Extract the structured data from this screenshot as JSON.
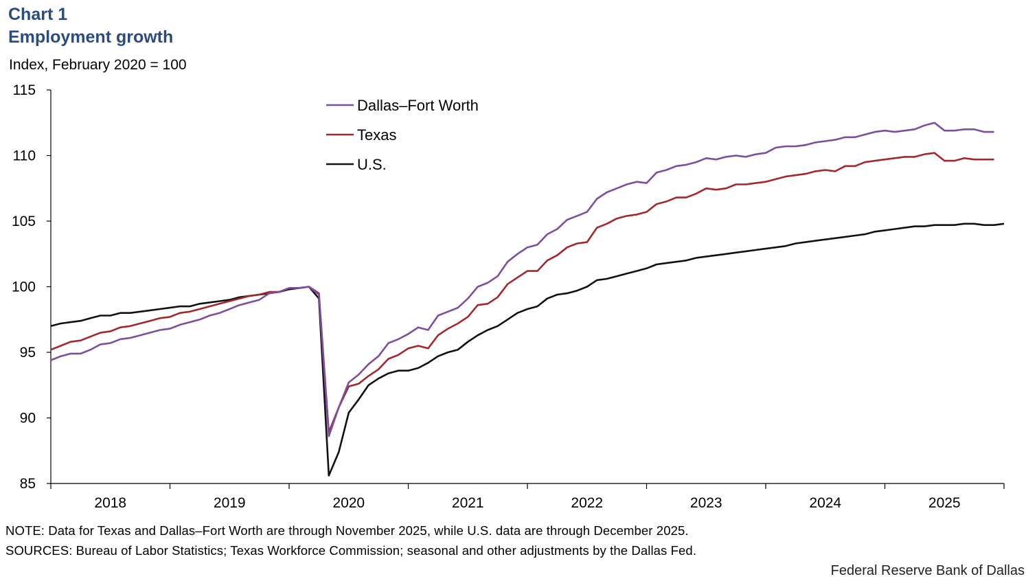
{
  "header": {
    "chart_number": "Chart 1",
    "title": "Employment growth",
    "subtitle": "Index, February 2020 = 100"
  },
  "footer": {
    "note": "NOTE: Data for Texas and Dallas–Fort Worth are through November 2025, while U.S. data are through December 2025.",
    "sources": "SOURCES: Bureau of Labor Statistics; Texas Workforce Commission; seasonal and other adjustments by the Dallas Fed.",
    "credit": "Federal Reserve Bank of Dallas"
  },
  "chart_data": {
    "type": "line",
    "title": "Employment growth",
    "ylabel": "Index, February 2020 = 100",
    "xlabel": "",
    "ylim": [
      85,
      115
    ],
    "yticks": [
      85,
      90,
      95,
      100,
      105,
      110,
      115
    ],
    "x_start": "2017-12",
    "x_tick_labels": [
      "2018",
      "2019",
      "2020",
      "2021",
      "2022",
      "2023",
      "2024",
      "2025"
    ],
    "grid": false,
    "legend": "top-center",
    "series": [
      {
        "name": "Dallas–Fort Worth",
        "color": "#7b4f9e",
        "values": [
          94.4,
          94.7,
          94.9,
          94.9,
          95.2,
          95.6,
          95.7,
          96.0,
          96.1,
          96.3,
          96.5,
          96.7,
          96.8,
          97.1,
          97.3,
          97.5,
          97.8,
          98.0,
          98.3,
          98.6,
          98.8,
          99.0,
          99.5,
          99.6,
          99.9,
          99.9,
          100.0,
          99.4,
          88.6,
          90.8,
          92.7,
          93.3,
          94.1,
          94.7,
          95.7,
          96.0,
          96.4,
          96.9,
          96.7,
          97.8,
          98.1,
          98.4,
          99.1,
          100.0,
          100.3,
          100.8,
          101.9,
          102.5,
          103.0,
          103.2,
          104.0,
          104.4,
          105.1,
          105.4,
          105.7,
          106.7,
          107.2,
          107.5,
          107.8,
          108.0,
          107.9,
          108.7,
          108.9,
          109.2,
          109.3,
          109.5,
          109.8,
          109.7,
          109.9,
          110.0,
          109.9,
          110.1,
          110.2,
          110.6,
          110.7,
          110.7,
          110.8,
          111.0,
          111.1,
          111.2,
          111.4,
          111.4,
          111.6,
          111.8,
          111.9,
          111.8,
          111.9,
          112.0,
          112.3,
          112.5,
          111.9,
          111.9,
          112.0,
          112.0,
          111.8,
          111.8
        ]
      },
      {
        "name": "Texas",
        "color": "#a3282e",
        "values": [
          95.2,
          95.5,
          95.8,
          95.9,
          96.2,
          96.5,
          96.6,
          96.9,
          97.0,
          97.2,
          97.4,
          97.6,
          97.7,
          98.0,
          98.1,
          98.3,
          98.5,
          98.7,
          98.9,
          99.1,
          99.3,
          99.4,
          99.6,
          99.6,
          99.9,
          99.9,
          100.0,
          99.5,
          88.9,
          90.8,
          92.4,
          92.6,
          93.2,
          93.7,
          94.5,
          94.8,
          95.3,
          95.5,
          95.3,
          96.3,
          96.8,
          97.2,
          97.7,
          98.6,
          98.7,
          99.2,
          100.2,
          100.7,
          101.2,
          101.2,
          102.0,
          102.4,
          103.0,
          103.3,
          103.4,
          104.5,
          104.8,
          105.2,
          105.4,
          105.5,
          105.7,
          106.3,
          106.5,
          106.8,
          106.8,
          107.1,
          107.5,
          107.4,
          107.5,
          107.8,
          107.8,
          107.9,
          108.0,
          108.2,
          108.4,
          108.5,
          108.6,
          108.8,
          108.9,
          108.8,
          109.2,
          109.2,
          109.5,
          109.6,
          109.7,
          109.8,
          109.9,
          109.9,
          110.1,
          110.2,
          109.6,
          109.6,
          109.8,
          109.7,
          109.7,
          109.7
        ]
      },
      {
        "name": "U.S.",
        "color": "#111111",
        "values": [
          97.0,
          97.2,
          97.3,
          97.4,
          97.6,
          97.8,
          97.8,
          98.0,
          98.0,
          98.1,
          98.2,
          98.3,
          98.4,
          98.5,
          98.5,
          98.7,
          98.8,
          98.9,
          99.0,
          99.2,
          99.3,
          99.4,
          99.5,
          99.6,
          99.8,
          99.9,
          100.0,
          99.1,
          85.6,
          87.4,
          90.4,
          91.4,
          92.5,
          93.0,
          93.4,
          93.6,
          93.6,
          93.8,
          94.2,
          94.7,
          95.0,
          95.2,
          95.8,
          96.3,
          96.7,
          97.0,
          97.5,
          98.0,
          98.3,
          98.5,
          99.1,
          99.4,
          99.5,
          99.7,
          100.0,
          100.5,
          100.6,
          100.8,
          101.0,
          101.2,
          101.4,
          101.7,
          101.8,
          101.9,
          102.0,
          102.2,
          102.3,
          102.4,
          102.5,
          102.6,
          102.7,
          102.8,
          102.9,
          103.0,
          103.1,
          103.3,
          103.4,
          103.5,
          103.6,
          103.7,
          103.8,
          103.9,
          104.0,
          104.2,
          104.3,
          104.4,
          104.5,
          104.6,
          104.6,
          104.7,
          104.7,
          104.7,
          104.8,
          104.8,
          104.7,
          104.7,
          104.8
        ]
      }
    ]
  }
}
